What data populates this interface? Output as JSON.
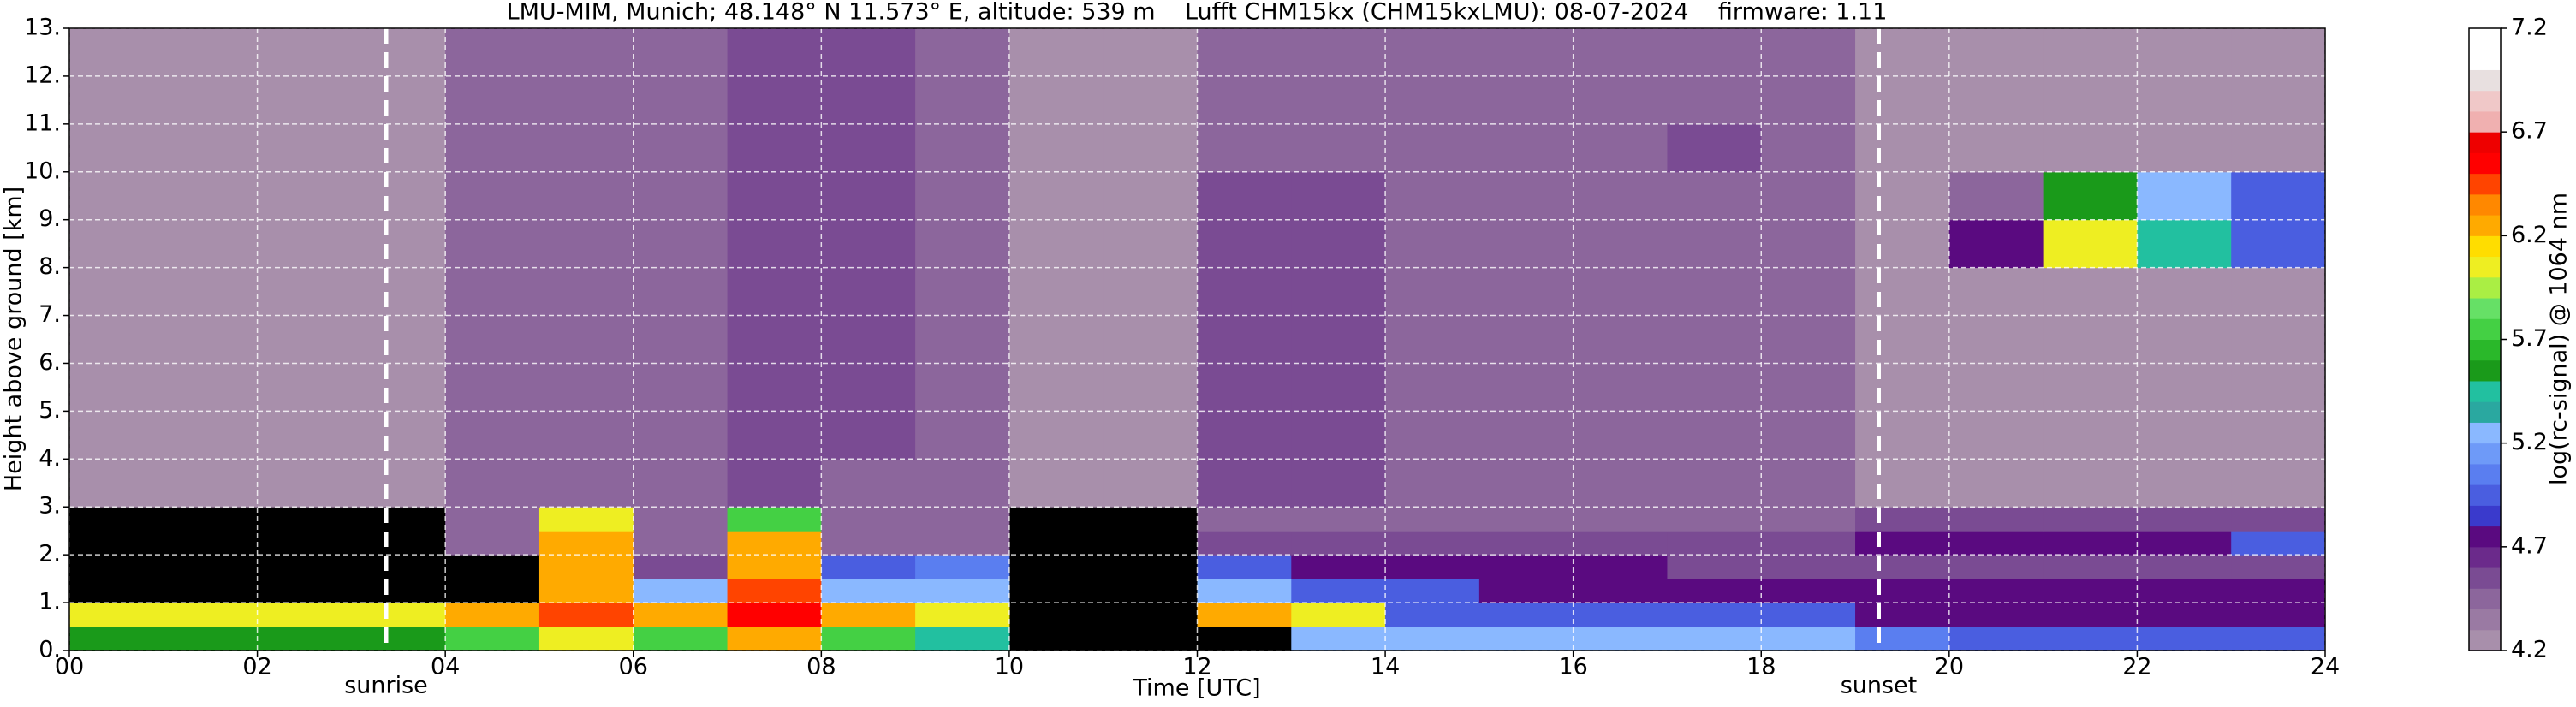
{
  "chart_data": {
    "type": "heatmap",
    "title": "LMU-MIM, Munich; 48.148° N 11.573° E, altitude: 539 m    Lufft CHM15kx (CHM15kxLMU): 08-07-2024    firmware: 1.11",
    "xlabel": "Time [UTC]",
    "ylabel": "Height above ground [km]",
    "colorbar_label": "log(rc-signal) @ 1064 nm",
    "x_bins": [
      0,
      1,
      2,
      3,
      4,
      5,
      6,
      7,
      8,
      9,
      10,
      11,
      12,
      13,
      14,
      15,
      16,
      17,
      18,
      19,
      20,
      21,
      22,
      23,
      24
    ],
    "y_bins": [
      0,
      0.5,
      1,
      1.5,
      2,
      2.5,
      3,
      4,
      5,
      6,
      7,
      8,
      9,
      10,
      11,
      12,
      13
    ],
    "z": [
      [
        5.6,
        5.6,
        5.6,
        5.6,
        5.8,
        6.0,
        5.7,
        6.2,
        5.8,
        5.5,
        null,
        null,
        null,
        5.3,
        5.3,
        5.3,
        5.2,
        5.2,
        5.2,
        5.1,
        5.0,
        5.0,
        5.0,
        5.0
      ],
      [
        6.1,
        6.1,
        6.0,
        6.0,
        6.3,
        6.4,
        6.2,
        6.5,
        6.2,
        6.0,
        null,
        null,
        6.3,
        6.0,
        5.0,
        5.0,
        4.9,
        4.9,
        4.9,
        4.8,
        4.8,
        4.8,
        4.8,
        4.8
      ],
      [
        null,
        null,
        null,
        null,
        null,
        6.2,
        5.3,
        6.4,
        5.3,
        5.2,
        null,
        null,
        5.2,
        5.0,
        4.9,
        4.8,
        4.8,
        4.8,
        4.8,
        4.7,
        4.7,
        4.7,
        4.7,
        4.7
      ],
      [
        null,
        null,
        null,
        null,
        null,
        6.3,
        4.6,
        6.3,
        5.0,
        5.1,
        null,
        null,
        5.0,
        4.8,
        4.8,
        4.7,
        4.7,
        4.6,
        4.6,
        4.6,
        4.6,
        4.6,
        4.6,
        4.6
      ],
      [
        null,
        null,
        null,
        null,
        4.4,
        6.2,
        4.5,
        6.3,
        4.5,
        4.5,
        null,
        null,
        4.6,
        4.6,
        4.6,
        4.6,
        4.6,
        4.6,
        4.6,
        4.7,
        4.8,
        4.8,
        4.8,
        4.9
      ],
      [
        null,
        null,
        null,
        null,
        4.4,
        6.0,
        4.5,
        5.8,
        4.5,
        4.5,
        null,
        null,
        4.5,
        4.5,
        4.5,
        4.5,
        4.5,
        4.5,
        4.5,
        4.6,
        4.6,
        4.6,
        4.6,
        4.6
      ],
      [
        4.3,
        4.3,
        4.3,
        4.3,
        4.4,
        4.5,
        4.5,
        4.6,
        4.5,
        4.5,
        4.3,
        4.3,
        4.6,
        4.6,
        4.4,
        4.4,
        4.4,
        4.4,
        4.4,
        4.3,
        4.3,
        4.3,
        4.3,
        4.3
      ],
      [
        4.3,
        4.3,
        4.3,
        4.3,
        4.4,
        4.5,
        4.5,
        4.6,
        4.6,
        4.5,
        4.3,
        4.3,
        4.6,
        4.6,
        4.4,
        4.4,
        4.4,
        4.4,
        4.4,
        4.3,
        4.3,
        4.3,
        4.3,
        4.3
      ],
      [
        4.3,
        4.3,
        4.3,
        4.3,
        4.4,
        4.5,
        4.5,
        4.6,
        4.6,
        4.5,
        4.3,
        4.3,
        4.6,
        4.6,
        4.4,
        4.4,
        4.4,
        4.4,
        4.4,
        4.3,
        4.3,
        4.3,
        4.3,
        4.3
      ],
      [
        4.3,
        4.3,
        4.3,
        4.3,
        4.4,
        4.5,
        4.5,
        4.6,
        4.6,
        4.5,
        4.3,
        4.3,
        4.6,
        4.6,
        4.4,
        4.4,
        4.4,
        4.4,
        4.4,
        4.3,
        4.3,
        4.3,
        4.3,
        4.3
      ],
      [
        4.3,
        4.3,
        4.3,
        4.3,
        4.4,
        4.5,
        4.5,
        4.6,
        4.6,
        4.5,
        4.3,
        4.3,
        4.6,
        4.6,
        4.4,
        4.4,
        4.4,
        4.4,
        4.4,
        4.3,
        4.3,
        4.3,
        4.3,
        4.3
      ],
      [
        4.3,
        4.3,
        4.3,
        4.3,
        4.4,
        4.5,
        4.5,
        4.6,
        4.6,
        4.5,
        4.3,
        4.3,
        4.6,
        4.6,
        4.4,
        4.4,
        4.4,
        4.4,
        4.4,
        4.3,
        4.8,
        6.0,
        5.4,
        5.0
      ],
      [
        4.3,
        4.3,
        4.3,
        4.3,
        4.4,
        4.5,
        4.5,
        4.6,
        4.6,
        4.5,
        4.3,
        4.3,
        4.6,
        4.6,
        4.4,
        4.4,
        4.4,
        4.4,
        4.4,
        4.3,
        4.5,
        5.6,
        5.2,
        4.9
      ],
      [
        4.3,
        4.3,
        4.3,
        4.3,
        4.4,
        4.5,
        4.5,
        4.6,
        4.6,
        4.5,
        4.3,
        4.3,
        4.5,
        4.5,
        4.4,
        4.4,
        4.4,
        4.6,
        4.4,
        4.3,
        4.3,
        4.3,
        4.3,
        4.3
      ],
      [
        4.3,
        4.3,
        4.3,
        4.3,
        4.4,
        4.5,
        4.5,
        4.6,
        4.6,
        4.5,
        4.3,
        4.3,
        4.5,
        4.5,
        4.4,
        4.4,
        4.4,
        4.4,
        4.4,
        4.3,
        4.3,
        4.3,
        4.3,
        4.3
      ],
      [
        4.3,
        4.3,
        4.3,
        4.3,
        4.4,
        4.5,
        4.5,
        4.6,
        4.6,
        4.5,
        4.3,
        4.3,
        4.5,
        4.5,
        4.4,
        4.4,
        4.4,
        4.4,
        4.4,
        4.3,
        4.3,
        4.3,
        4.3,
        4.3
      ]
    ],
    "xlim": [
      0,
      24
    ],
    "ylim": [
      0,
      13
    ],
    "xticks": [
      {
        "value": 0,
        "label": "00"
      },
      {
        "value": 2,
        "label": "02"
      },
      {
        "value": 4,
        "label": "04"
      },
      {
        "value": 6,
        "label": "06"
      },
      {
        "value": 8,
        "label": "08"
      },
      {
        "value": 10,
        "label": "10"
      },
      {
        "value": 12,
        "label": "12"
      },
      {
        "value": 14,
        "label": "14"
      },
      {
        "value": 16,
        "label": "16"
      },
      {
        "value": 18,
        "label": "18"
      },
      {
        "value": 20,
        "label": "20"
      },
      {
        "value": 22,
        "label": "22"
      },
      {
        "value": 24,
        "label": "24"
      }
    ],
    "yticks": [
      {
        "value": 0,
        "label": "0."
      },
      {
        "value": 1,
        "label": "1."
      },
      {
        "value": 2,
        "label": "2."
      },
      {
        "value": 3,
        "label": "3."
      },
      {
        "value": 4,
        "label": "4."
      },
      {
        "value": 5,
        "label": "5."
      },
      {
        "value": 6,
        "label": "6."
      },
      {
        "value": 7,
        "label": "7."
      },
      {
        "value": 8,
        "label": "8."
      },
      {
        "value": 9,
        "label": "9."
      },
      {
        "value": 10,
        "label": "10."
      },
      {
        "value": 11,
        "label": "11."
      },
      {
        "value": 12,
        "label": "12."
      },
      {
        "value": 13,
        "label": "13."
      }
    ],
    "grid": true,
    "clim": [
      4.2,
      7.2
    ],
    "cticks": [
      4.2,
      4.7,
      5.2,
      5.7,
      6.2,
      6.7,
      7.2
    ],
    "colors": [
      "#a88fab",
      "#9a7aa3",
      "#8c669c",
      "#7a4b93",
      "#6b2a8b",
      "#5a0a80",
      "#3a3acc",
      "#4a5ee0",
      "#5a7ef0",
      "#6e9af8",
      "#8ab8ff",
      "#2aa8a0",
      "#22c0a0",
      "#1a9a1a",
      "#2ab82a",
      "#44d044",
      "#66e066",
      "#aaee44",
      "#eeee22",
      "#ffdd00",
      "#ffaa00",
      "#ff8800",
      "#ff4400",
      "#ff0000",
      "#ee0000",
      "#f0b0b0",
      "#f0c8c8",
      "#e8e0e0",
      "#ffffff",
      "#ffffff"
    ],
    "annotations": [
      {
        "text": "sunrise",
        "x": 3.37
      },
      {
        "text": "sunset",
        "x": 19.25
      }
    ]
  }
}
